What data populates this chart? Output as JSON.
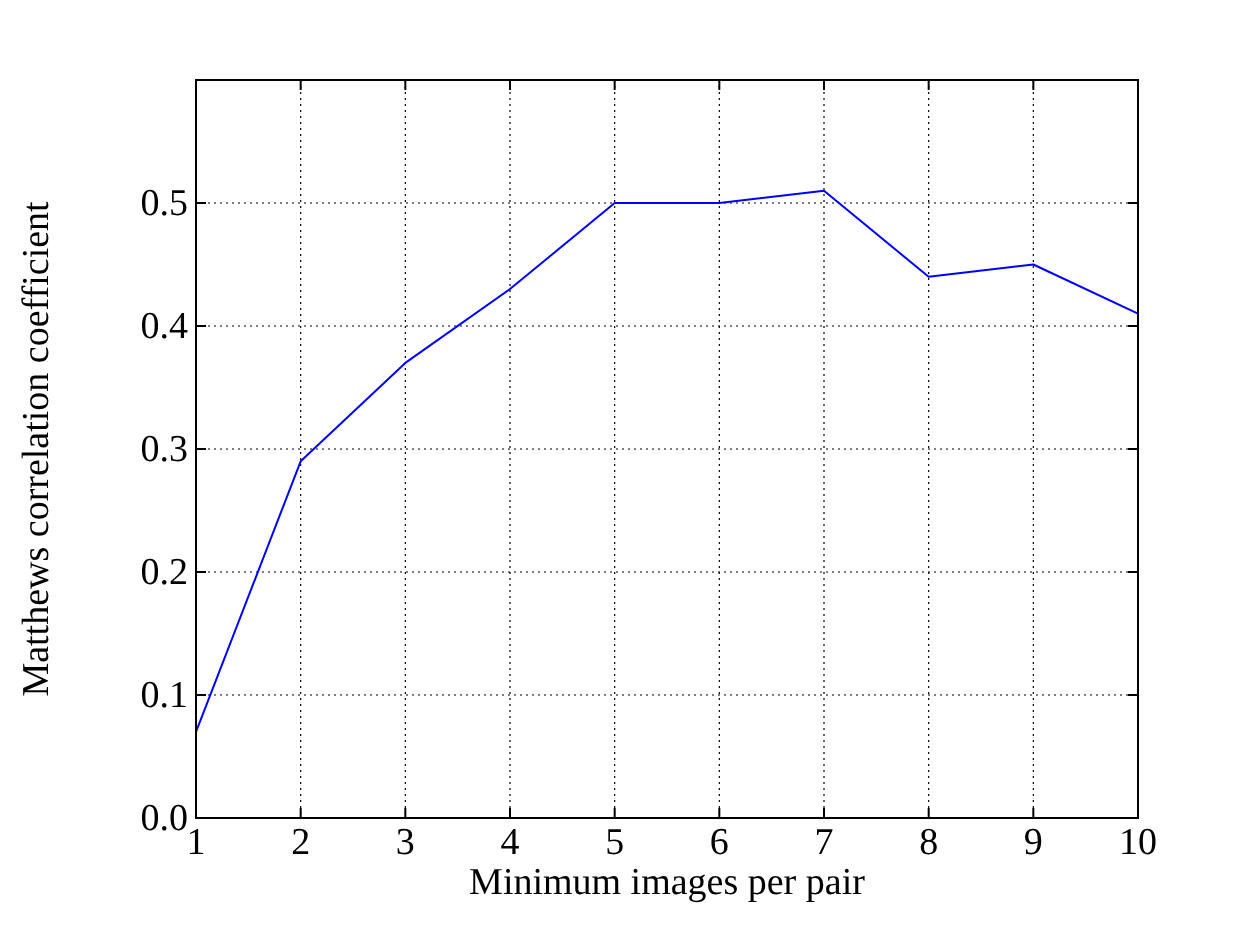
{
  "chart_data": {
    "type": "line",
    "xlabel": "Minimum images per pair",
    "ylabel": "Matthews correlation coefficient",
    "x": [
      1,
      2,
      3,
      4,
      5,
      6,
      7,
      8,
      9,
      10
    ],
    "series": [
      {
        "color": "#0000ff",
        "values": [
          0.07,
          0.29,
          0.37,
          0.43,
          0.5,
          0.5,
          0.51,
          0.44,
          0.45,
          0.41
        ]
      }
    ],
    "xlim": [
      1,
      10
    ],
    "xticks": [
      1,
      2,
      3,
      4,
      5,
      6,
      7,
      8,
      9,
      10
    ],
    "ylim": [
      0,
      0.6
    ],
    "yticks": [
      {
        "value": 0,
        "label": "0.0"
      },
      {
        "value": 0.1,
        "label": "0.1"
      },
      {
        "value": 0.2,
        "label": "0.2"
      },
      {
        "value": 0.3,
        "label": "0.3"
      },
      {
        "value": 0.4,
        "label": "0.4"
      },
      {
        "value": 0.5,
        "label": "0.5"
      },
      {
        "value": 0.6,
        "label": null
      }
    ],
    "grid": true,
    "marker": "none",
    "line_style": "solid"
  }
}
